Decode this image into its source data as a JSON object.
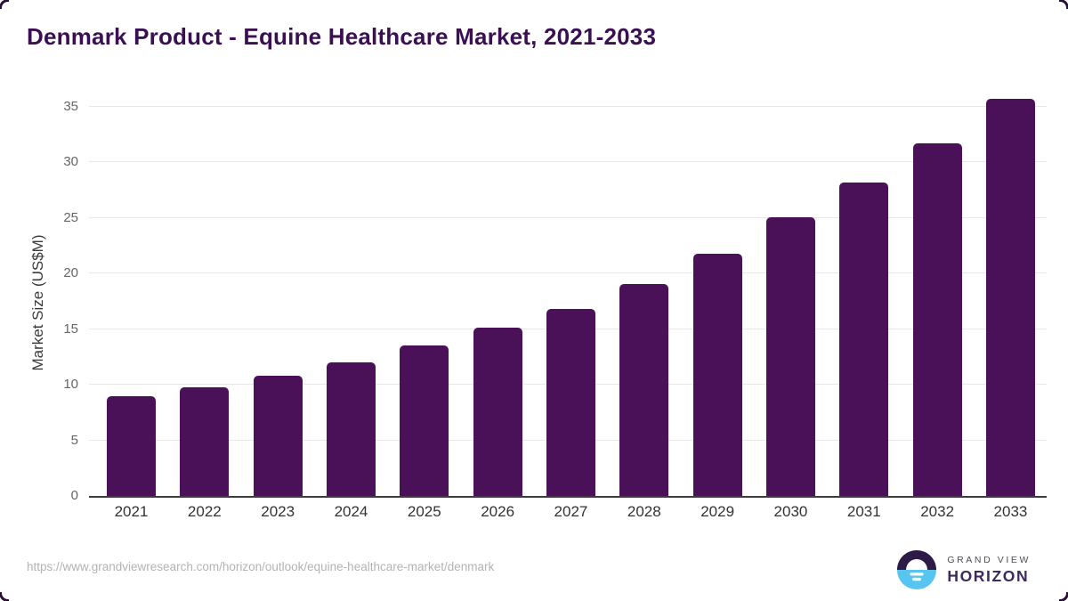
{
  "title": "Denmark Product - Equine Healthcare Market, 2021-2033",
  "chart_data": {
    "type": "bar",
    "title": "Denmark Product - Equine Healthcare Market, 2021-2033",
    "categories": [
      "2021",
      "2022",
      "2023",
      "2024",
      "2025",
      "2026",
      "2027",
      "2028",
      "2029",
      "2030",
      "2031",
      "2032",
      "2033"
    ],
    "values": [
      9.0,
      9.8,
      10.8,
      12.0,
      13.5,
      15.1,
      16.8,
      19.1,
      21.8,
      25.1,
      28.2,
      31.7,
      35.7
    ],
    "xlabel": "",
    "ylabel": "Market Size (US$M)",
    "ylim": [
      0,
      37
    ],
    "yticks": [
      0,
      5,
      10,
      15,
      20,
      25,
      30,
      35
    ],
    "grid": true,
    "legend": false,
    "bar_color": "#4a1158"
  },
  "footer": {
    "source_url": "https://www.grandviewresearch.com/horizon/outlook/equine-healthcare-market/denmark",
    "logo": {
      "line1": "GRAND VIEW",
      "line2": "HORIZON",
      "icon": "horizon-sunset-icon"
    }
  },
  "colors": {
    "bar": "#4a1158",
    "title": "#3b1053",
    "gridline": "#e8e8e8",
    "axis_line": "#3d3d3d",
    "ytick_text": "#666666",
    "xtick_text": "#333333",
    "url_text": "#b3b3b3",
    "logo_dark": "#2c1a47",
    "logo_blue": "#58c5f0",
    "logo_text_gray": "#514b5c",
    "logo_text_purple": "#3d2a5e"
  }
}
